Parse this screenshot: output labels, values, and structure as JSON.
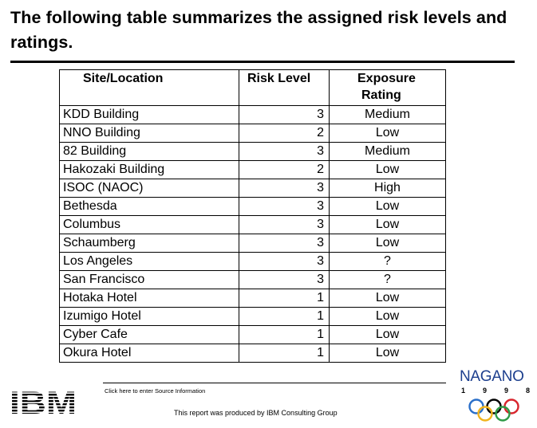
{
  "title": "The following table summarizes the assigned risk levels and ratings.",
  "table": {
    "headers": {
      "site": "Site/Location",
      "level": "Risk Level",
      "exposure_line1": "Exposure",
      "exposure_line2": "Rating"
    },
    "rows": [
      {
        "site": "KDD Building",
        "level": "3",
        "rating": "Medium"
      },
      {
        "site": "NNO Building",
        "level": "2",
        "rating": "Low"
      },
      {
        "site": "82 Building",
        "level": "3",
        "rating": "Medium"
      },
      {
        "site": "Hakozaki Building",
        "level": "2",
        "rating": "Low"
      },
      {
        "site": "ISOC (NAOC)",
        "level": "3",
        "rating": "High"
      },
      {
        "site": "Bethesda",
        "level": "3",
        "rating": "Low"
      },
      {
        "site": "Columbus",
        "level": "3",
        "rating": "Low"
      },
      {
        "site": "Schaumberg",
        "level": "3",
        "rating": "Low"
      },
      {
        "site": "Los Angeles",
        "level": "3",
        "rating": "?"
      },
      {
        "site": "San Francisco",
        "level": "3",
        "rating": "?"
      },
      {
        "site": "Hotaka Hotel",
        "level": "1",
        "rating": "Low"
      },
      {
        "site": "Izumigo Hotel",
        "level": "1",
        "rating": "Low"
      },
      {
        "site": "Cyber Cafe",
        "level": "1",
        "rating": "Low"
      },
      {
        "site": "Okura Hotel",
        "level": "1",
        "rating": "Low"
      }
    ]
  },
  "footer": {
    "source_note": "Click here to enter Source Information",
    "report_note": "This report was produced by IBM Consulting Group",
    "ibm_logo": "IBM",
    "nagano_wordmark": "NAGANO",
    "nagano_year": [
      "1",
      "9",
      "9",
      "8"
    ]
  },
  "colors": {
    "nagano_blue": "#1d3f8e",
    "ring_blue": "#2a6fc9",
    "ring_black": "#000000",
    "ring_red": "#d8262e",
    "ring_yellow": "#f1b41c",
    "ring_green": "#2e9a46"
  }
}
